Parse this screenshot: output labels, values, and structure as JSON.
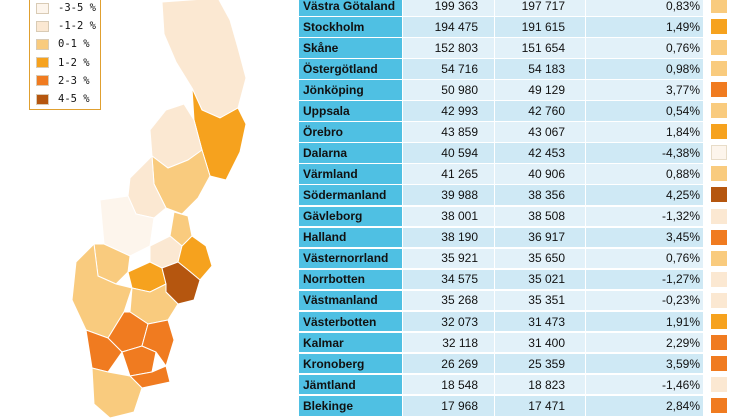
{
  "legend": [
    {
      "label": "-3-5 %",
      "color": "#fdf5ec"
    },
    {
      "label": "-1-2 %",
      "color": "#fbe8d2"
    },
    {
      "label": "0-1 %",
      "color": "#f9cb7e"
    },
    {
      "label": "1-2 %",
      "color": "#f6a21e"
    },
    {
      "label": "2-3 %",
      "color": "#f07b20"
    },
    {
      "label": "4-5 %",
      "color": "#b5560f"
    }
  ],
  "chart_data": {
    "type": "table",
    "columns": [
      "county",
      "value_a",
      "value_b",
      "change_pct"
    ],
    "rows": [
      {
        "name": "Västra Götaland",
        "v1": "199 363",
        "v2": "197 717",
        "pct": "0,83%",
        "color": "#f9cb7e"
      },
      {
        "name": "Stockholm",
        "v1": "194 475",
        "v2": "191 615",
        "pct": "1,49%",
        "color": "#f6a21e"
      },
      {
        "name": "Skåne",
        "v1": "152 803",
        "v2": "151 654",
        "pct": "0,76%",
        "color": "#f9cb7e"
      },
      {
        "name": "Östergötland",
        "v1": "54 716",
        "v2": "54 183",
        "pct": "0,98%",
        "color": "#f9cb7e"
      },
      {
        "name": "Jönköping",
        "v1": "50 980",
        "v2": "49 129",
        "pct": "3,77%",
        "color": "#f07b20"
      },
      {
        "name": "Uppsala",
        "v1": "42 993",
        "v2": "42 760",
        "pct": "0,54%",
        "color": "#f9cb7e"
      },
      {
        "name": "Örebro",
        "v1": "43 859",
        "v2": "43 067",
        "pct": "1,84%",
        "color": "#f6a21e"
      },
      {
        "name": "Dalarna",
        "v1": "40 594",
        "v2": "42 453",
        "pct": "-4,38%",
        "color": "#fdf5ec"
      },
      {
        "name": "Värmland",
        "v1": "41 265",
        "v2": "40 906",
        "pct": "0,88%",
        "color": "#f9cb7e"
      },
      {
        "name": "Södermanland",
        "v1": "39 988",
        "v2": "38 356",
        "pct": "4,25%",
        "color": "#b5560f"
      },
      {
        "name": "Gävleborg",
        "v1": "38 001",
        "v2": "38 508",
        "pct": "-1,32%",
        "color": "#fbe8d2"
      },
      {
        "name": "Halland",
        "v1": "38 190",
        "v2": "36 917",
        "pct": "3,45%",
        "color": "#f07b20"
      },
      {
        "name": "Västernorrland",
        "v1": "35 921",
        "v2": "35 650",
        "pct": "0,76%",
        "color": "#f9cb7e"
      },
      {
        "name": "Norrbotten",
        "v1": "34 575",
        "v2": "35 021",
        "pct": "-1,27%",
        "color": "#fbe8d2"
      },
      {
        "name": "Västmanland",
        "v1": "35 268",
        "v2": "35 351",
        "pct": "-0,23%",
        "color": "#fbe8d2"
      },
      {
        "name": "Västerbotten",
        "v1": "32 073",
        "v2": "31 473",
        "pct": "1,91%",
        "color": "#f6a21e"
      },
      {
        "name": "Kalmar",
        "v1": "32 118",
        "v2": "31 400",
        "pct": "2,29%",
        "color": "#f07b20"
      },
      {
        "name": "Kronoberg",
        "v1": "26 269",
        "v2": "25 359",
        "pct": "3,59%",
        "color": "#f07b20"
      },
      {
        "name": "Jämtland",
        "v1": "18 548",
        "v2": "18 823",
        "pct": "-1,46%",
        "color": "#fbe8d2"
      },
      {
        "name": "Blekinge",
        "v1": "17 968",
        "v2": "17 471",
        "pct": "2,84%",
        "color": "#f07b20"
      }
    ]
  },
  "map_regions": [
    {
      "name": "Norrbotten",
      "color": "#fbe8d2"
    },
    {
      "name": "Västerbotten",
      "color": "#f6a21e"
    },
    {
      "name": "Jämtland",
      "color": "#fbe8d2"
    },
    {
      "name": "Västernorrland",
      "color": "#f9cb7e"
    },
    {
      "name": "Gävleborg",
      "color": "#fbe8d2"
    },
    {
      "name": "Dalarna",
      "color": "#fdf5ec"
    },
    {
      "name": "Värmland",
      "color": "#f9cb7e"
    },
    {
      "name": "Uppsala",
      "color": "#f9cb7e"
    },
    {
      "name": "Västmanland",
      "color": "#fbe8d2"
    },
    {
      "name": "Stockholm",
      "color": "#f6a21e"
    },
    {
      "name": "Örebro",
      "color": "#f6a21e"
    },
    {
      "name": "Södermanland",
      "color": "#b5560f"
    },
    {
      "name": "Västra Götaland",
      "color": "#f9cb7e"
    },
    {
      "name": "Östergötland",
      "color": "#f9cb7e"
    },
    {
      "name": "Jönköping",
      "color": "#f07b20"
    },
    {
      "name": "Halland",
      "color": "#f07b20"
    },
    {
      "name": "Kronoberg",
      "color": "#f07b20"
    },
    {
      "name": "Kalmar",
      "color": "#f07b20"
    },
    {
      "name": "Blekinge",
      "color": "#f07b20"
    },
    {
      "name": "Skåne",
      "color": "#f9cb7e"
    }
  ]
}
